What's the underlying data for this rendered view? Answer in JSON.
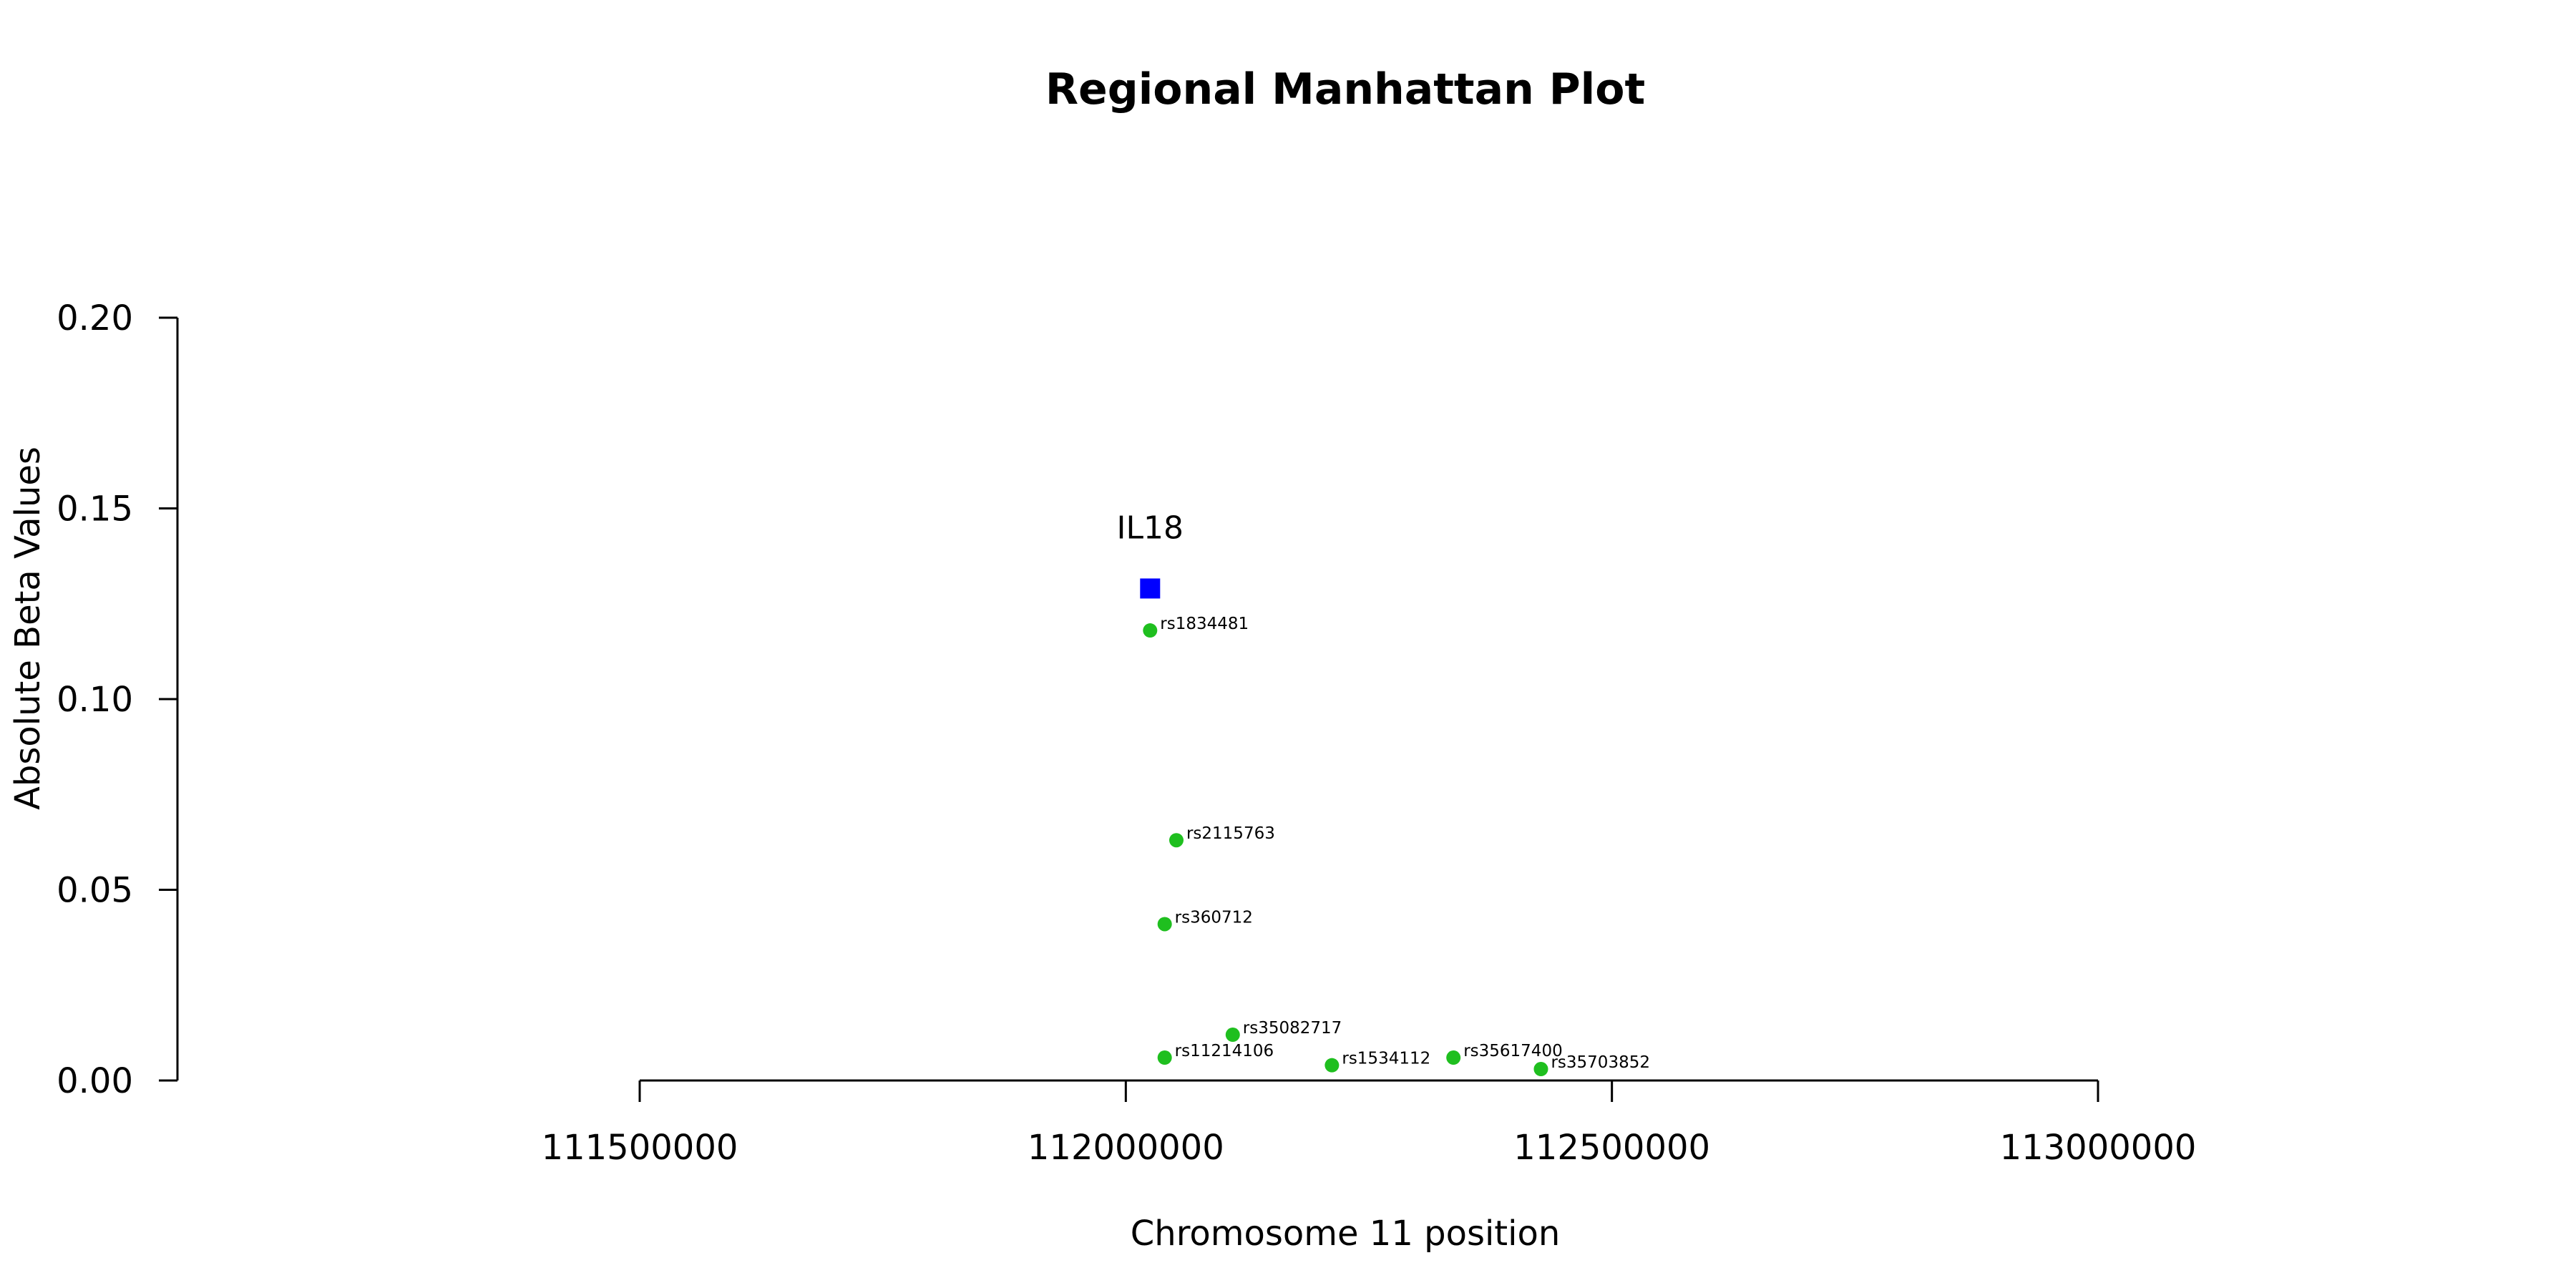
{
  "chart_data": {
    "type": "scatter",
    "title": "Regional Manhattan Plot",
    "xlabel": "Chromosome 11 position",
    "ylabel": "Absolute Beta Values",
    "xlim": [
      111000000,
      113500000
    ],
    "ylim": [
      0,
      0.2
    ],
    "x_axis_range": [
      111500000,
      113000000
    ],
    "x_ticks": [
      111500000,
      112000000,
      112500000,
      113000000
    ],
    "x_tick_labels": [
      "111500000",
      "112000000",
      "112500000",
      "113000000"
    ],
    "y_ticks": [
      0,
      0.05,
      0.1,
      0.15,
      0.2
    ],
    "y_tick_labels": [
      "0.00",
      "0.05",
      "0.10",
      "0.15",
      "0.20"
    ],
    "grid": false,
    "gene": {
      "label": "IL18",
      "x": 112025000,
      "y": 0.129,
      "color": "#0000ff",
      "marker": "square"
    },
    "snps": {
      "color": "#1fbf1f",
      "marker": "circle",
      "points": [
        {
          "label": "rs1834481",
          "x": 112025000,
          "y": 0.118
        },
        {
          "label": "rs2115763",
          "x": 112052000,
          "y": 0.063
        },
        {
          "label": "rs360712",
          "x": 112040000,
          "y": 0.041
        },
        {
          "label": "rs35082717",
          "x": 112110000,
          "y": 0.012
        },
        {
          "label": "rs11214106",
          "x": 112040000,
          "y": 0.006
        },
        {
          "label": "rs1534112",
          "x": 112212000,
          "y": 0.004
        },
        {
          "label": "rs35617400",
          "x": 112337000,
          "y": 0.006
        },
        {
          "label": "rs35703852",
          "x": 112427000,
          "y": 0.003
        }
      ]
    }
  }
}
